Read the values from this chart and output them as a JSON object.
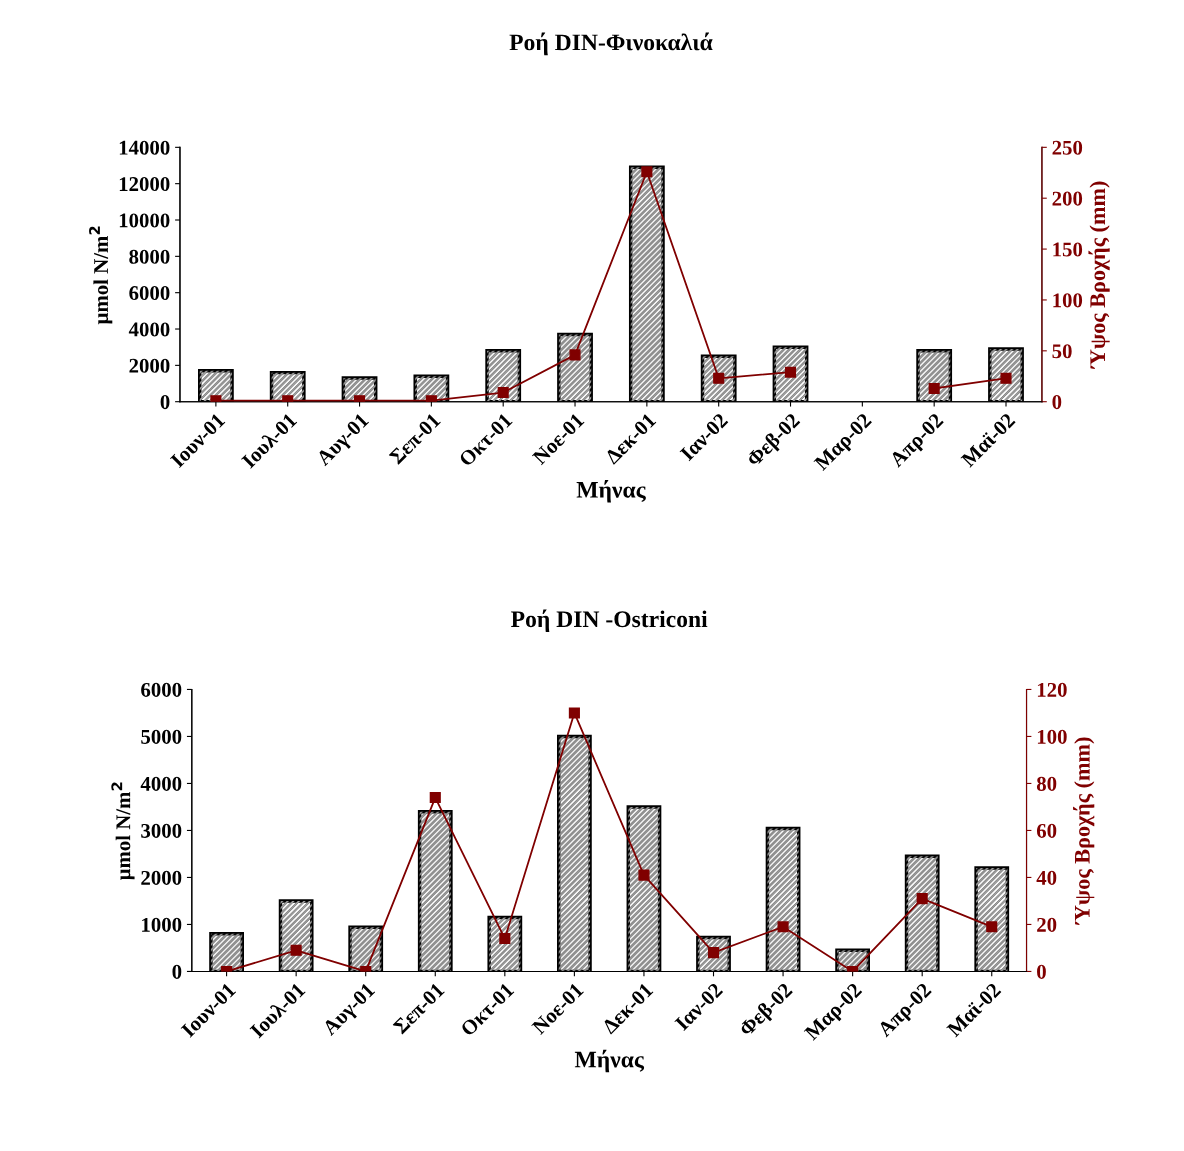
{
  "chart_data": [
    {
      "type": "bar",
      "title": "Ροή DIN-Φινοκαλιά",
      "xlabel": "Μήνας",
      "ylabel": "μmol N/m$^{2}$",
      "y2label": "Ύψος Βροχής (mm)",
      "categories": [
        "Ιουν-01",
        "Ιουλ-01",
        "Αυγ-01",
        "Σεπ-01",
        "Οκτ-01",
        "Νοε-01",
        "Δεκ-01",
        "Ιαν-02",
        "Φεβ-02",
        "Μαρ-02",
        "Απρ-02",
        "Μαϊ-02"
      ],
      "series": [
        {
          "color": "#a6a6a6",
          "values": [
            1700,
            1600,
            1300,
            1400,
            2800,
            3700,
            12900,
            2500,
            3000,
            null,
            2800,
            2900
          ]
        },
        {
          "type": "line",
          "axis": "y2",
          "color": "#800000",
          "marker": "square",
          "values": [
            1,
            1,
            1,
            1,
            9,
            46,
            226,
            23,
            29,
            null,
            13,
            23
          ]
        }
      ],
      "ylim": [
        0,
        14000
      ],
      "yticks": [
        0,
        2000,
        4000,
        6000,
        8000,
        10000,
        12000,
        14000
      ],
      "y2lim": [
        0,
        250
      ],
      "y2ticks": [
        0,
        50,
        100,
        150,
        200,
        250
      ],
      "grid": false,
      "legend": false
    },
    {
      "type": "bar",
      "title": "Ροή DIN -Ostriconi",
      "xlabel": "Μήνας",
      "ylabel": "μmol N/m$^{2}$",
      "y2label": "Ύψος Βροχής (mm)",
      "categories": [
        "Ιουν-01",
        "Ιουλ-01",
        "Αυγ-01",
        "Σεπ-01",
        "Οκτ-01",
        "Νοε-01",
        "Δεκ-01",
        "Ιαν-02",
        "Φεβ-02",
        "Μαρ-02",
        "Απρ-02",
        "Μαϊ-02"
      ],
      "series": [
        {
          "color": "#a6a6a6",
          "values": [
            800,
            1500,
            940,
            3400,
            1150,
            5000,
            3500,
            720,
            3040,
            450,
            2450,
            2200
          ]
        },
        {
          "type": "line",
          "axis": "y2",
          "color": "#800000",
          "marker": "square",
          "values": [
            0,
            9,
            0,
            74,
            14,
            110,
            41,
            8,
            19,
            0,
            31,
            19
          ]
        }
      ],
      "ylim": [
        0,
        6000
      ],
      "yticks": [
        0,
        1000,
        2000,
        3000,
        4000,
        5000,
        6000
      ],
      "y2lim": [
        0,
        120
      ],
      "y2ticks": [
        0,
        20,
        40,
        60,
        80,
        100,
        120
      ],
      "grid": false,
      "legend": false
    }
  ]
}
